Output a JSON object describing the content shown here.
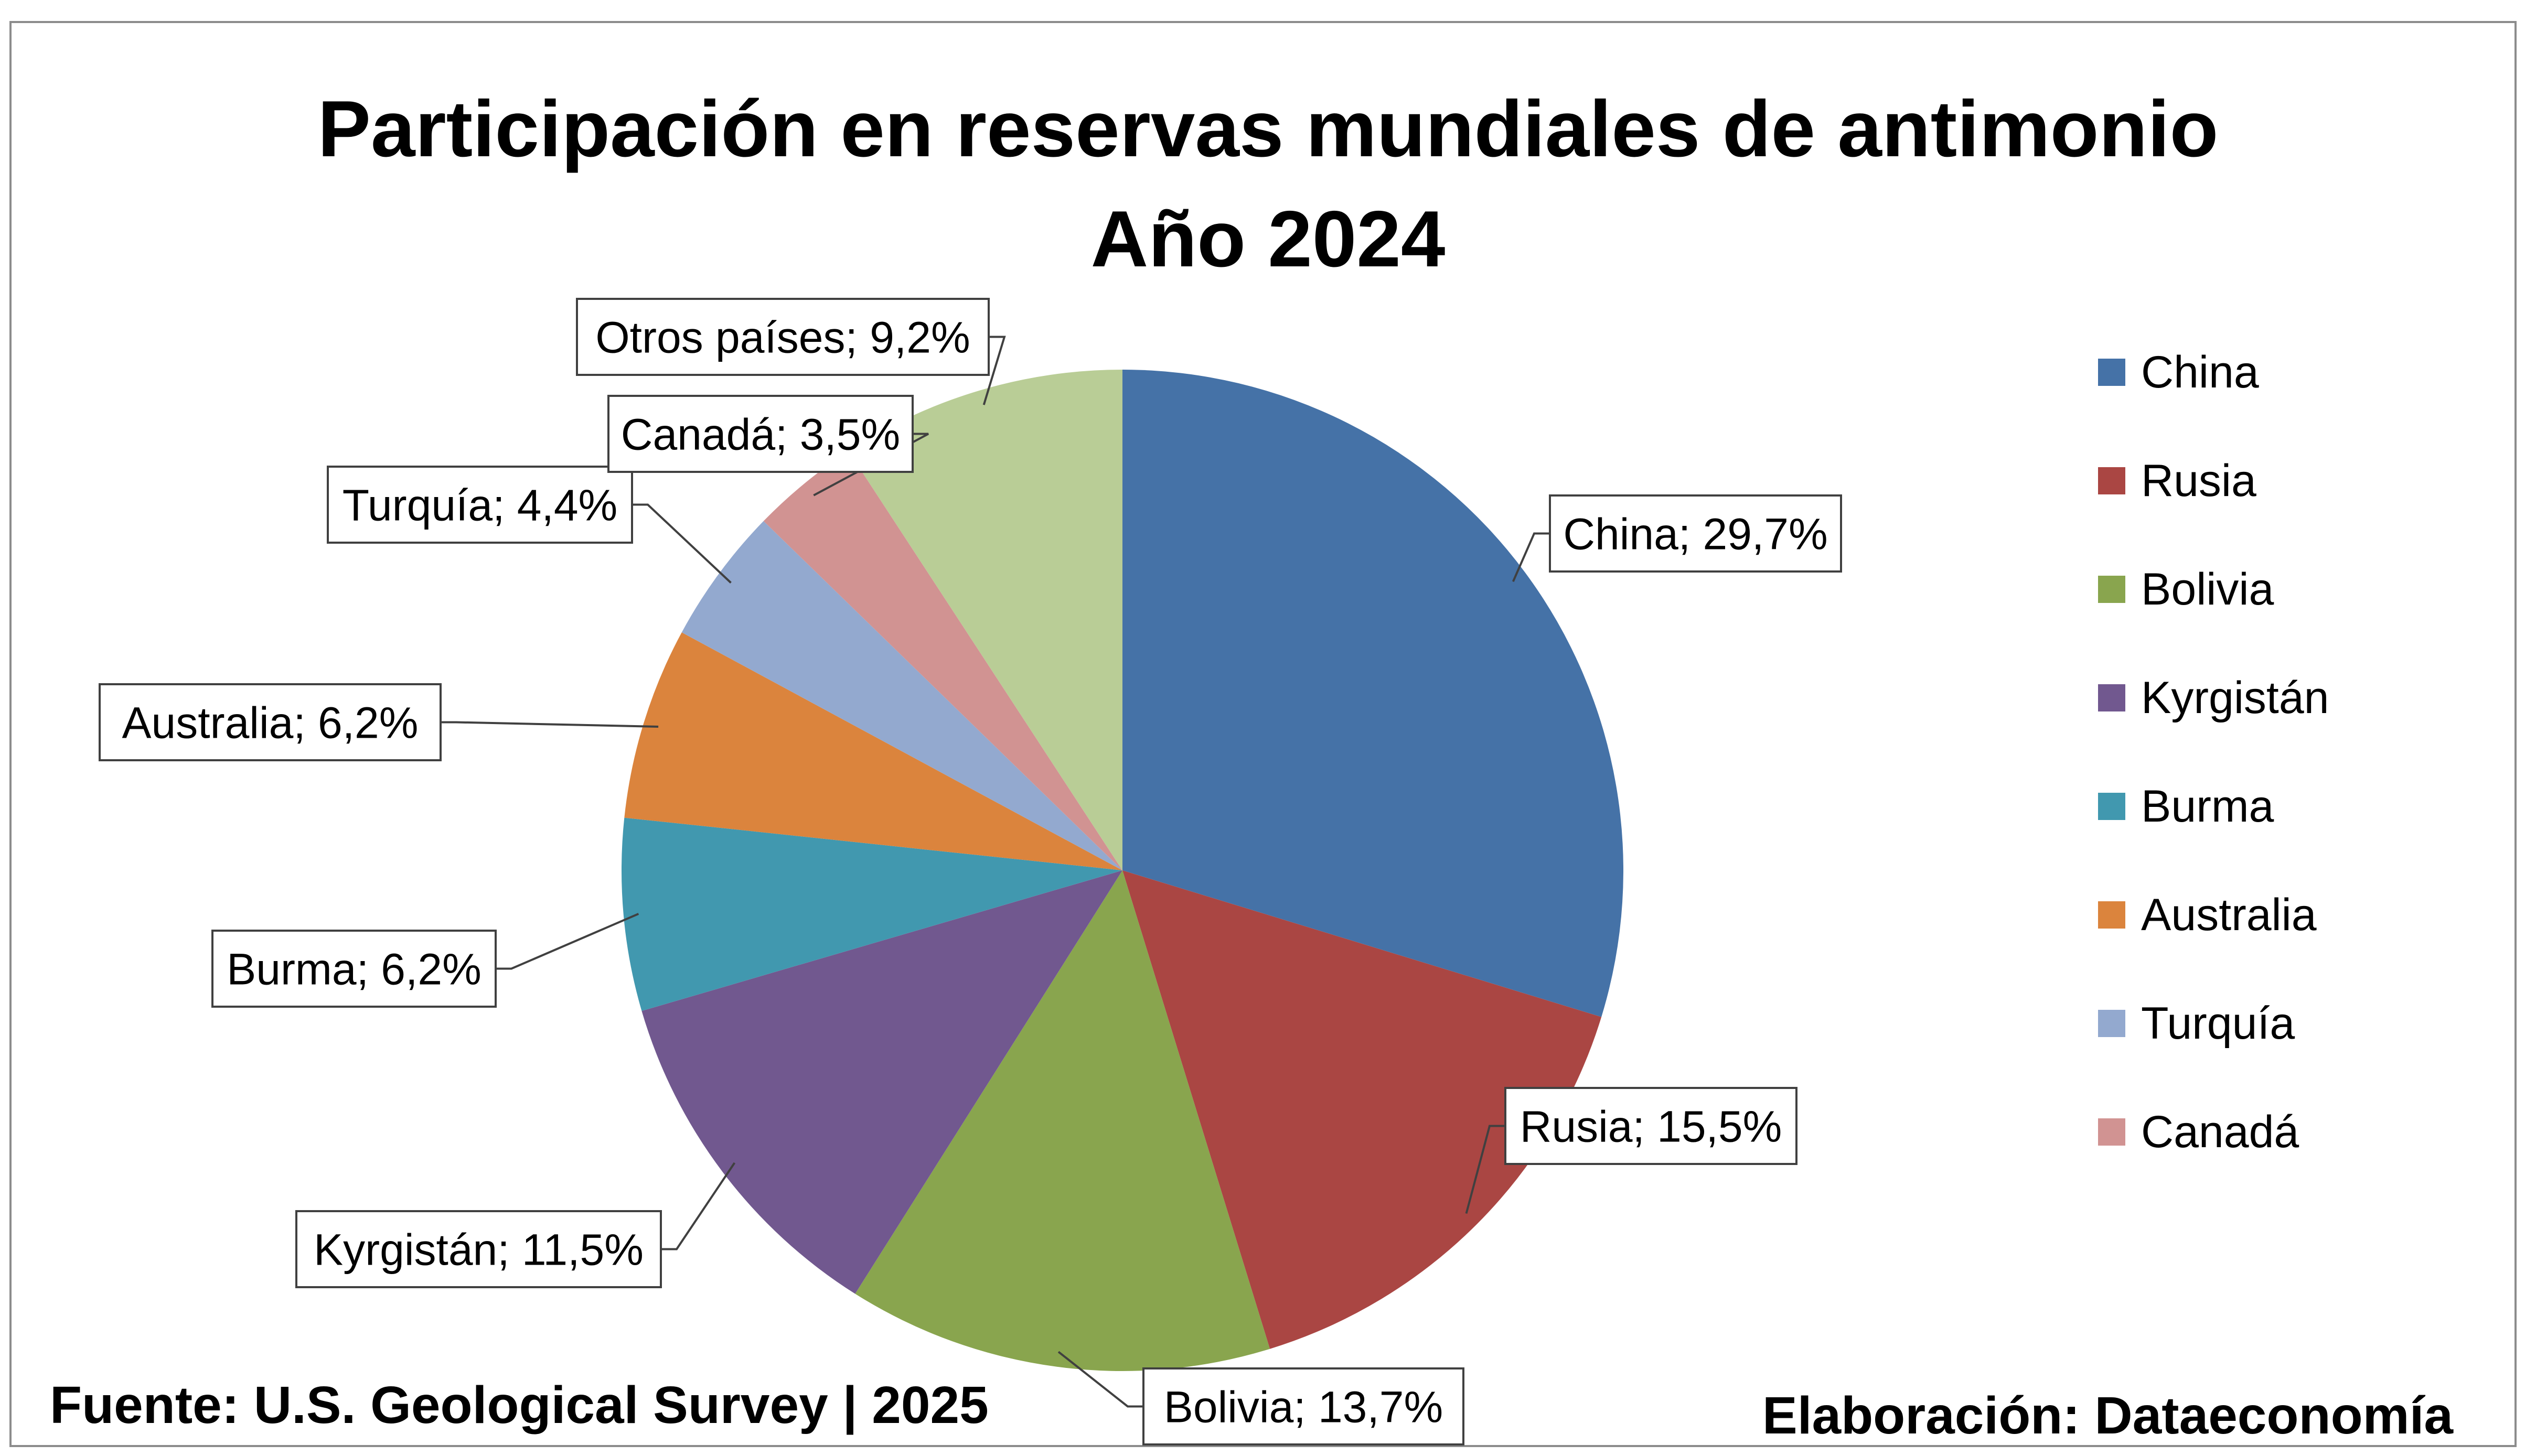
{
  "chart_data": {
    "type": "pie",
    "title": "Participación en reservas mundiales de antimonio",
    "subtitle": "Año 2024",
    "slices": [
      {
        "name": "China",
        "value": 29.7,
        "label": "China; 29,7%",
        "color": "#4572A7"
      },
      {
        "name": "Rusia",
        "value": 15.5,
        "label": "Rusia; 15,5%",
        "color": "#AA4643"
      },
      {
        "name": "Bolivia",
        "value": 13.7,
        "label": "Bolivia; 13,7%",
        "color": "#89A54E"
      },
      {
        "name": "Kyrgistán",
        "value": 11.5,
        "label": "Kyrgistán; 11,5%",
        "color": "#71588F"
      },
      {
        "name": "Burma",
        "value": 6.2,
        "label": "Burma; 6,2%",
        "color": "#4198AF"
      },
      {
        "name": "Australia",
        "value": 6.2,
        "label": "Australia; 6,2%",
        "color": "#DB843D"
      },
      {
        "name": "Turquía",
        "value": 4.4,
        "label": "Turquía; 4,4%",
        "color": "#93A9CF"
      },
      {
        "name": "Canadá",
        "value": 3.5,
        "label": "Canadá; 3,5%",
        "color": "#D19392"
      },
      {
        "name": "Otros países",
        "value": 9.2,
        "label": "Otros países; 9,2%",
        "color": "#B9CD96"
      }
    ],
    "legend": {
      "position": "right",
      "entries": [
        "China",
        "Rusia",
        "Bolivia",
        "Kyrgistán",
        "Burma",
        "Australia",
        "Turquía",
        "Canadá"
      ]
    }
  },
  "footer": {
    "source": "Fuente: U.S. Geological Survey | 2025",
    "credit": "Elaboración: Dataeconomía"
  }
}
